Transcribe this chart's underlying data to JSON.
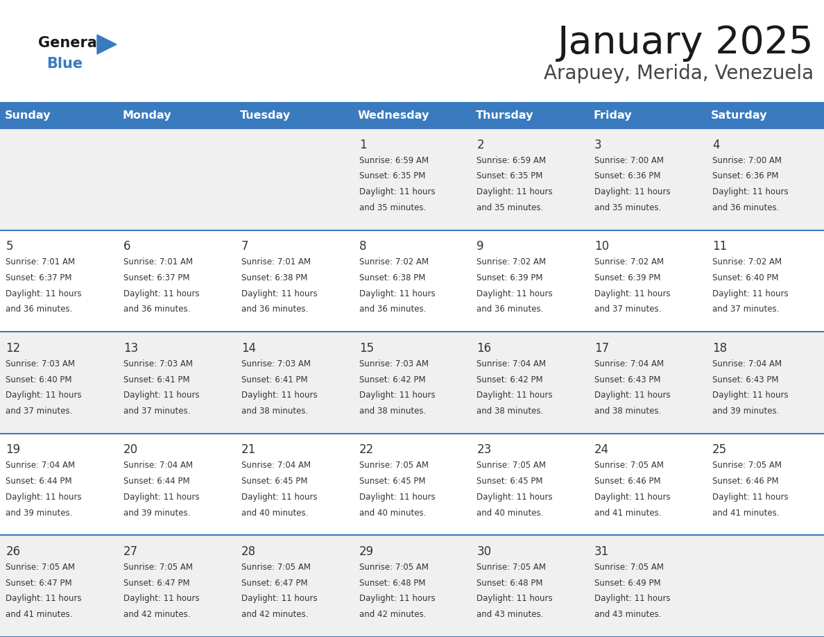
{
  "title": "January 2025",
  "subtitle": "Arapuey, Merida, Venezuela",
  "days_of_week": [
    "Sunday",
    "Monday",
    "Tuesday",
    "Wednesday",
    "Thursday",
    "Friday",
    "Saturday"
  ],
  "header_bg": "#3a7bbf",
  "header_text": "#ffffff",
  "row_bg_light": "#f0f0f0",
  "row_bg_white": "#ffffff",
  "cell_text": "#333333",
  "day_num_color": "#333333",
  "border_color": "#3a7bbf",
  "logo_general_color": "#1a1a1a",
  "logo_blue_color": "#3a7bbf",
  "title_color": "#1a1a1a",
  "subtitle_color": "#444444",
  "calendar_data": [
    {
      "day": 1,
      "col": 3,
      "row": 0,
      "sunrise": "6:59 AM",
      "sunset": "6:35 PM",
      "daylight_min": 35
    },
    {
      "day": 2,
      "col": 4,
      "row": 0,
      "sunrise": "6:59 AM",
      "sunset": "6:35 PM",
      "daylight_min": 35
    },
    {
      "day": 3,
      "col": 5,
      "row": 0,
      "sunrise": "7:00 AM",
      "sunset": "6:36 PM",
      "daylight_min": 35
    },
    {
      "day": 4,
      "col": 6,
      "row": 0,
      "sunrise": "7:00 AM",
      "sunset": "6:36 PM",
      "daylight_min": 36
    },
    {
      "day": 5,
      "col": 0,
      "row": 1,
      "sunrise": "7:01 AM",
      "sunset": "6:37 PM",
      "daylight_min": 36
    },
    {
      "day": 6,
      "col": 1,
      "row": 1,
      "sunrise": "7:01 AM",
      "sunset": "6:37 PM",
      "daylight_min": 36
    },
    {
      "day": 7,
      "col": 2,
      "row": 1,
      "sunrise": "7:01 AM",
      "sunset": "6:38 PM",
      "daylight_min": 36
    },
    {
      "day": 8,
      "col": 3,
      "row": 1,
      "sunrise": "7:02 AM",
      "sunset": "6:38 PM",
      "daylight_min": 36
    },
    {
      "day": 9,
      "col": 4,
      "row": 1,
      "sunrise": "7:02 AM",
      "sunset": "6:39 PM",
      "daylight_min": 36
    },
    {
      "day": 10,
      "col": 5,
      "row": 1,
      "sunrise": "7:02 AM",
      "sunset": "6:39 PM",
      "daylight_min": 37
    },
    {
      "day": 11,
      "col": 6,
      "row": 1,
      "sunrise": "7:02 AM",
      "sunset": "6:40 PM",
      "daylight_min": 37
    },
    {
      "day": 12,
      "col": 0,
      "row": 2,
      "sunrise": "7:03 AM",
      "sunset": "6:40 PM",
      "daylight_min": 37
    },
    {
      "day": 13,
      "col": 1,
      "row": 2,
      "sunrise": "7:03 AM",
      "sunset": "6:41 PM",
      "daylight_min": 37
    },
    {
      "day": 14,
      "col": 2,
      "row": 2,
      "sunrise": "7:03 AM",
      "sunset": "6:41 PM",
      "daylight_min": 38
    },
    {
      "day": 15,
      "col": 3,
      "row": 2,
      "sunrise": "7:03 AM",
      "sunset": "6:42 PM",
      "daylight_min": 38
    },
    {
      "day": 16,
      "col": 4,
      "row": 2,
      "sunrise": "7:04 AM",
      "sunset": "6:42 PM",
      "daylight_min": 38
    },
    {
      "day": 17,
      "col": 5,
      "row": 2,
      "sunrise": "7:04 AM",
      "sunset": "6:43 PM",
      "daylight_min": 38
    },
    {
      "day": 18,
      "col": 6,
      "row": 2,
      "sunrise": "7:04 AM",
      "sunset": "6:43 PM",
      "daylight_min": 39
    },
    {
      "day": 19,
      "col": 0,
      "row": 3,
      "sunrise": "7:04 AM",
      "sunset": "6:44 PM",
      "daylight_min": 39
    },
    {
      "day": 20,
      "col": 1,
      "row": 3,
      "sunrise": "7:04 AM",
      "sunset": "6:44 PM",
      "daylight_min": 39
    },
    {
      "day": 21,
      "col": 2,
      "row": 3,
      "sunrise": "7:04 AM",
      "sunset": "6:45 PM",
      "daylight_min": 40
    },
    {
      "day": 22,
      "col": 3,
      "row": 3,
      "sunrise": "7:05 AM",
      "sunset": "6:45 PM",
      "daylight_min": 40
    },
    {
      "day": 23,
      "col": 4,
      "row": 3,
      "sunrise": "7:05 AM",
      "sunset": "6:45 PM",
      "daylight_min": 40
    },
    {
      "day": 24,
      "col": 5,
      "row": 3,
      "sunrise": "7:05 AM",
      "sunset": "6:46 PM",
      "daylight_min": 41
    },
    {
      "day": 25,
      "col": 6,
      "row": 3,
      "sunrise": "7:05 AM",
      "sunset": "6:46 PM",
      "daylight_min": 41
    },
    {
      "day": 26,
      "col": 0,
      "row": 4,
      "sunrise": "7:05 AM",
      "sunset": "6:47 PM",
      "daylight_min": 41
    },
    {
      "day": 27,
      "col": 1,
      "row": 4,
      "sunrise": "7:05 AM",
      "sunset": "6:47 PM",
      "daylight_min": 42
    },
    {
      "day": 28,
      "col": 2,
      "row": 4,
      "sunrise": "7:05 AM",
      "sunset": "6:47 PM",
      "daylight_min": 42
    },
    {
      "day": 29,
      "col": 3,
      "row": 4,
      "sunrise": "7:05 AM",
      "sunset": "6:48 PM",
      "daylight_min": 42
    },
    {
      "day": 30,
      "col": 4,
      "row": 4,
      "sunrise": "7:05 AM",
      "sunset": "6:48 PM",
      "daylight_min": 43
    },
    {
      "day": 31,
      "col": 5,
      "row": 4,
      "sunrise": "7:05 AM",
      "sunset": "6:49 PM",
      "daylight_min": 43
    }
  ]
}
